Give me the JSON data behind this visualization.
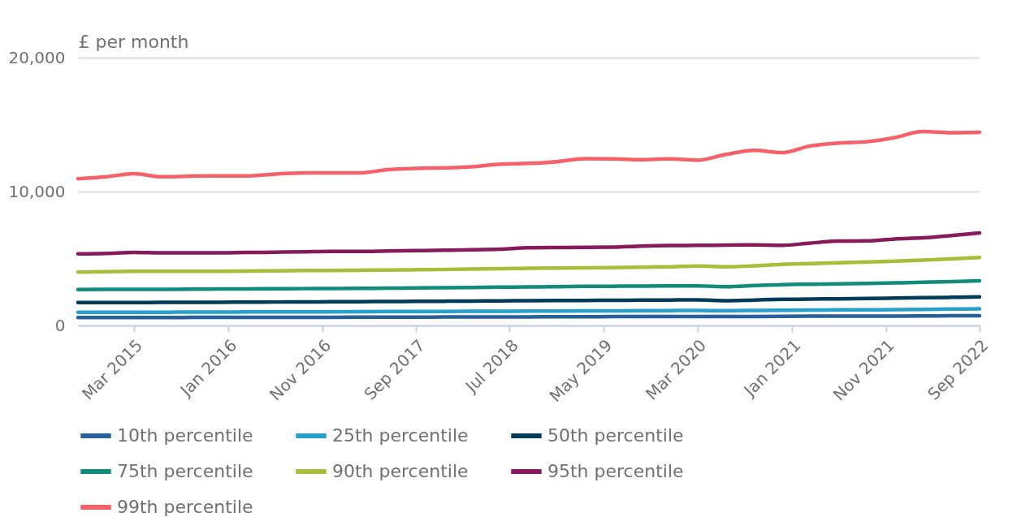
{
  "chart_data": {
    "type": "line",
    "ylabel": "£ per month",
    "x": [
      "2014-09",
      "2014-12",
      "2015-03",
      "2015-06",
      "2015-09",
      "2015-12",
      "2016-03",
      "2016-06",
      "2016-09",
      "2016-12",
      "2017-03",
      "2017-06",
      "2017-09",
      "2017-12",
      "2018-03",
      "2018-06",
      "2018-09",
      "2018-12",
      "2019-03",
      "2019-06",
      "2019-09",
      "2019-12",
      "2020-03",
      "2020-06",
      "2020-09",
      "2020-12",
      "2021-03",
      "2021-06",
      "2021-09",
      "2021-12",
      "2022-03",
      "2022-06",
      "2022-09"
    ],
    "series": [
      {
        "name": "10th percentile",
        "color": "#27609a",
        "values": [
          590,
          590,
          590,
          590,
          600,
          600,
          600,
          610,
          610,
          610,
          620,
          620,
          620,
          630,
          630,
          640,
          640,
          650,
          650,
          660,
          660,
          670,
          670,
          660,
          670,
          680,
          690,
          690,
          700,
          700,
          710,
          720,
          730
        ]
      },
      {
        "name": "25th percentile",
        "color": "#27a0cc",
        "values": [
          990,
          990,
          990,
          990,
          1000,
          1000,
          1010,
          1010,
          1020,
          1020,
          1030,
          1040,
          1040,
          1050,
          1060,
          1060,
          1070,
          1080,
          1090,
          1090,
          1100,
          1110,
          1120,
          1100,
          1120,
          1140,
          1150,
          1160,
          1170,
          1180,
          1200,
          1220,
          1240
        ]
      },
      {
        "name": "50th percentile",
        "color": "#003c57",
        "values": [
          1710,
          1710,
          1710,
          1720,
          1720,
          1730,
          1740,
          1750,
          1760,
          1770,
          1780,
          1790,
          1800,
          1810,
          1820,
          1840,
          1850,
          1860,
          1870,
          1880,
          1890,
          1900,
          1910,
          1850,
          1900,
          1950,
          1970,
          1990,
          2010,
          2040,
          2070,
          2100,
          2140
        ]
      },
      {
        "name": "75th percentile",
        "color": "#118c7b",
        "values": [
          2680,
          2690,
          2700,
          2700,
          2710,
          2720,
          2730,
          2740,
          2750,
          2760,
          2770,
          2790,
          2800,
          2820,
          2840,
          2860,
          2880,
          2900,
          2920,
          2930,
          2940,
          2950,
          2960,
          2900,
          2980,
          3050,
          3080,
          3110,
          3140,
          3180,
          3220,
          3280,
          3340
        ]
      },
      {
        "name": "90th percentile",
        "color": "#a8bd3a",
        "values": [
          3990,
          4010,
          4050,
          4040,
          4040,
          4050,
          4060,
          4080,
          4100,
          4110,
          4120,
          4140,
          4160,
          4180,
          4210,
          4240,
          4270,
          4290,
          4300,
          4320,
          4350,
          4380,
          4440,
          4380,
          4450,
          4560,
          4620,
          4680,
          4740,
          4800,
          4880,
          4970,
          5070
        ]
      },
      {
        "name": "95th percentile",
        "color": "#871a5b",
        "values": [
          5350,
          5380,
          5450,
          5420,
          5430,
          5430,
          5450,
          5470,
          5500,
          5530,
          5530,
          5560,
          5590,
          5620,
          5650,
          5700,
          5800,
          5820,
          5830,
          5850,
          5930,
          5970,
          5980,
          6000,
          6010,
          5990,
          6150,
          6300,
          6320,
          6460,
          6540,
          6710,
          6910
        ]
      },
      {
        "name": "99th percentile",
        "color": "#f66068",
        "values": [
          10950,
          11100,
          11330,
          11100,
          11150,
          11170,
          11170,
          11310,
          11390,
          11400,
          11390,
          11640,
          11730,
          11770,
          11850,
          12050,
          12100,
          12230,
          12460,
          12440,
          12380,
          12440,
          12340,
          12770,
          13070,
          12910,
          13400,
          13620,
          13720,
          14030,
          14480,
          14390,
          14420
        ]
      }
    ],
    "xlim": [
      "2014-09",
      "2022-09"
    ],
    "xticks": [
      {
        "value": "2015-03",
        "label": "Mar 2015"
      },
      {
        "value": "2016-01",
        "label": "Jan 2016"
      },
      {
        "value": "2016-11",
        "label": "Nov 2016"
      },
      {
        "value": "2017-09",
        "label": "Sep 2017"
      },
      {
        "value": "2018-07",
        "label": "Jul 2018"
      },
      {
        "value": "2019-05",
        "label": "May 2019"
      },
      {
        "value": "2020-03",
        "label": "Mar 2020"
      },
      {
        "value": "2021-01",
        "label": "Jan 2021"
      },
      {
        "value": "2021-11",
        "label": "Nov 2021"
      },
      {
        "value": "2022-09",
        "label": "Sep 2022"
      }
    ],
    "ylim": [
      0,
      20000
    ],
    "yticks": [
      {
        "value": 0,
        "label": "0"
      },
      {
        "value": 10000,
        "label": "10,000"
      },
      {
        "value": 20000,
        "label": "20,000"
      }
    ],
    "grid": "y",
    "legend": "bottom",
    "marker": "none",
    "line_style": "solid"
  }
}
